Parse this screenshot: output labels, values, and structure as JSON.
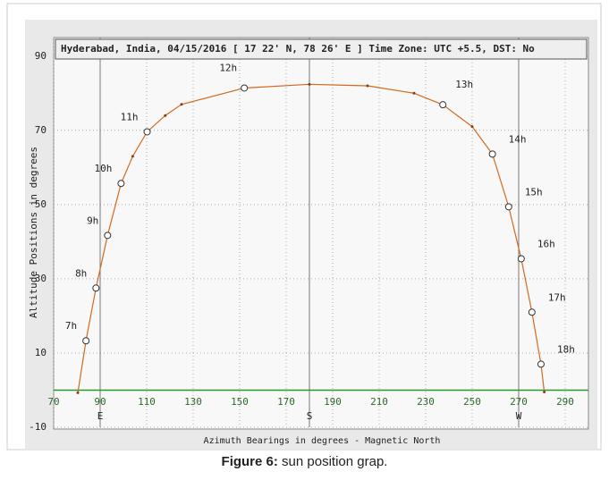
{
  "chart_data": {
    "type": "line",
    "title": "Hyderabad, India, 04/15/2016 [ 17 22' N, 78 26' E ] Time Zone: UTC +5.5, DST: No",
    "xlabel": "Azimuth Bearings in degrees - Magnetic North",
    "ylabel": "Altitude Positions in degrees",
    "xlim": [
      70,
      300
    ],
    "ylim": [
      -10,
      95
    ],
    "xticks": [
      70,
      90,
      110,
      130,
      150,
      170,
      190,
      210,
      230,
      250,
      270,
      290
    ],
    "yticks": [
      -10,
      10,
      30,
      50,
      70,
      90
    ],
    "grid": true,
    "directions": [
      {
        "value": 90,
        "label": "E"
      },
      {
        "value": 180,
        "label": "S"
      },
      {
        "value": 270,
        "label": "W"
      }
    ],
    "curve": {
      "color": "#d2691e",
      "x": [
        80.4,
        83.9,
        88.2,
        93.2,
        99,
        104,
        110.2,
        118,
        125,
        152,
        180,
        205,
        225,
        237.4,
        250,
        258.7,
        265.7,
        271.1,
        275.7,
        279.6,
        281
      ],
      "y": [
        -0.7,
        13.3,
        27.5,
        41.7,
        55.7,
        63,
        69.6,
        74,
        77,
        81.4,
        82.4,
        82,
        80,
        76.9,
        71,
        63.6,
        49.4,
        35.4,
        21,
        7,
        -0.5
      ]
    },
    "hours": {
      "labels": [
        "7h",
        "8h",
        "9h",
        "10h",
        "11h",
        "12h",
        "13h",
        "14h",
        "15h",
        "16h",
        "17h",
        "18h"
      ],
      "x": [
        83.9,
        88.2,
        93.2,
        99,
        110.2,
        152,
        237.4,
        258.7,
        265.7,
        271.1,
        275.7,
        279.6
      ],
      "y": [
        13.3,
        27.5,
        41.7,
        55.7,
        69.6,
        81.4,
        76.9,
        63.6,
        49.4,
        35.4,
        21,
        7
      ]
    }
  },
  "caption": {
    "label": "Figure 6:",
    "text": "sun position grap."
  }
}
